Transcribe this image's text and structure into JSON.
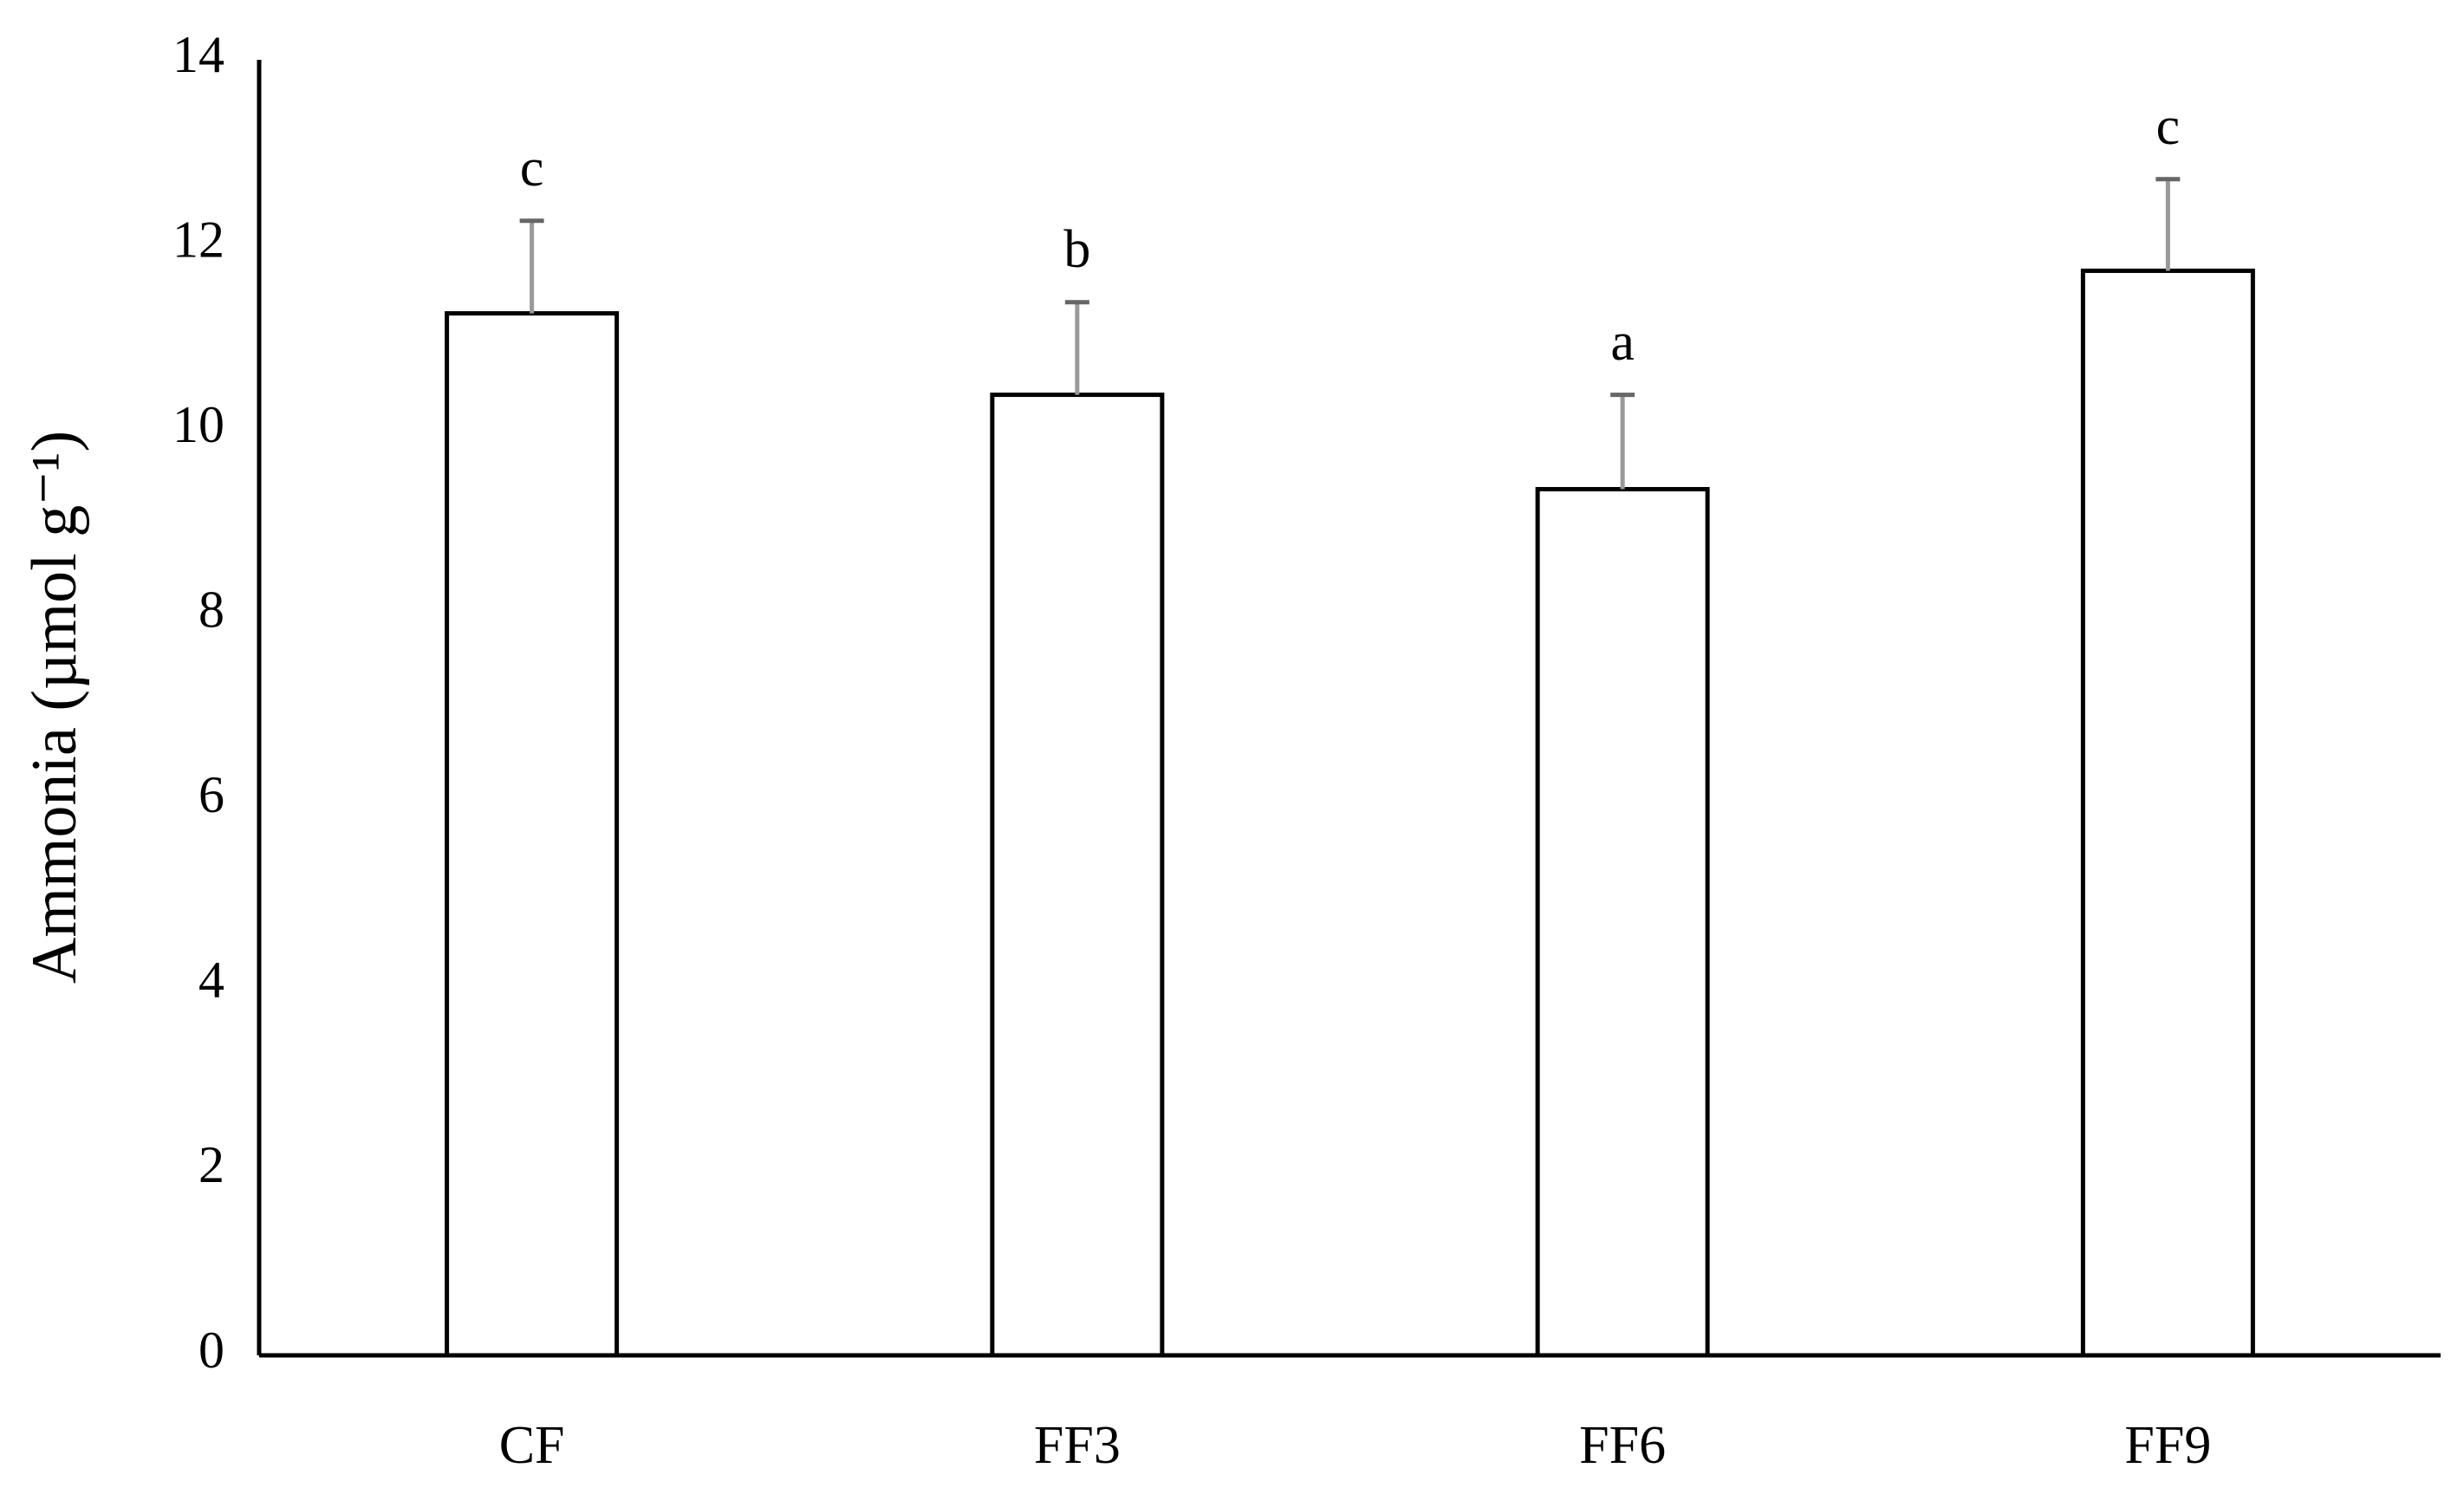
{
  "chart_data": {
    "type": "bar",
    "ylabel": "Ammonia (µmol g⁻¹)",
    "categories": [
      "CF",
      "FF3",
      "FF6",
      "FF9"
    ],
    "values": [
      11.26,
      10.38,
      9.36,
      11.72
    ],
    "errors": [
      1.0,
      1.0,
      1.02,
      0.99
    ],
    "annotations": [
      "c",
      "b",
      "a",
      "c"
    ],
    "color": "#ffffff",
    "ylim": [
      0,
      14
    ],
    "yticks": [
      0,
      2,
      4,
      6,
      8,
      10,
      12,
      14
    ],
    "grid": false
  }
}
